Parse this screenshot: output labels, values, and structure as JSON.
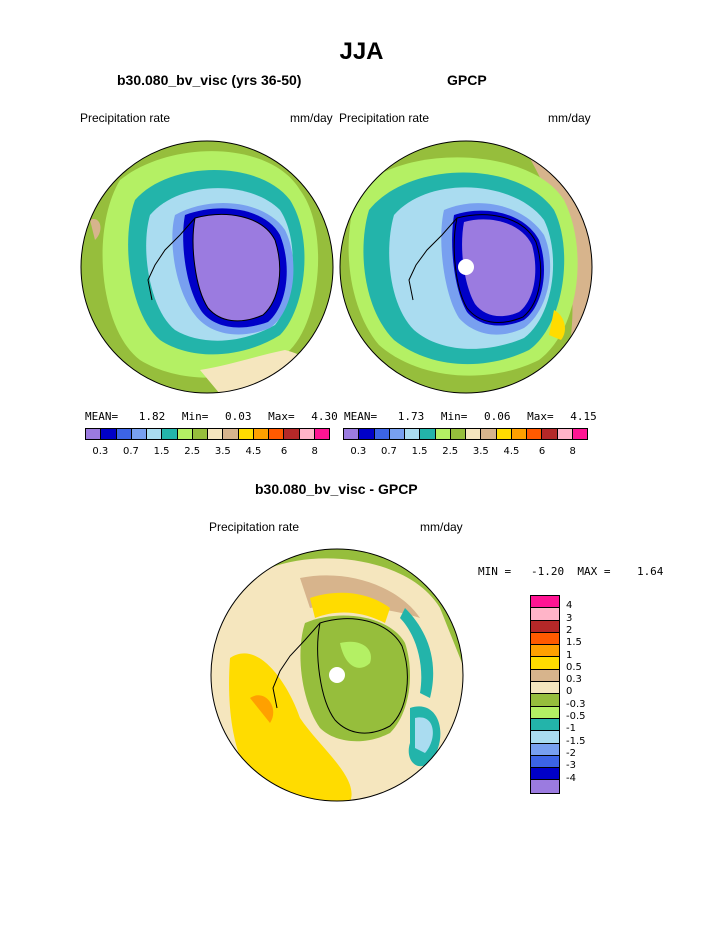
{
  "figure": {
    "title": "JJA",
    "left_panel": {
      "subtitle": "b30.080_bv_visc (yrs 36-50)",
      "variable": "Precipitation rate",
      "units": "mm/day",
      "stats": {
        "mean_label": "MEAN=",
        "mean": "1.82",
        "min_label": "Min=",
        "min": "0.03",
        "max_label": "Max=",
        "max": "4.30"
      }
    },
    "right_panel": {
      "subtitle": "GPCP",
      "variable": "Precipitation rate",
      "units": "mm/day",
      "stats": {
        "mean_label": "MEAN=",
        "mean": "1.73",
        "min_label": "Min=",
        "min": "0.06",
        "max_label": "Max=",
        "max": "4.15"
      }
    },
    "abs_colorbar": {
      "colors": [
        "#9b7be0",
        "#0000c8",
        "#3c64e6",
        "#78a0f0",
        "#aadcf0",
        "#23b4aa",
        "#b4f064",
        "#96be3c",
        "#f5e6be",
        "#d7b48c",
        "#ffdc00",
        "#ffa000",
        "#ff5a00",
        "#b42828",
        "#ffb4c8",
        "#ff1493"
      ],
      "tick_labels": [
        "0.3",
        "0.7",
        "1.5",
        "2.5",
        "3.5",
        "4.5",
        "6",
        "8"
      ]
    },
    "diff_panel": {
      "subtitle": "b30.080_bv_visc - GPCP",
      "variable": "Precipitation rate",
      "units": "mm/day",
      "minmax_text": "MIN =   -1.20  MAX =    1.64"
    },
    "diff_colorbar": {
      "colors": [
        "#ff1493",
        "#ffb4c8",
        "#b42828",
        "#ff5a00",
        "#ffa000",
        "#ffdc00",
        "#d7b48c",
        "#f5e6be",
        "#96be3c",
        "#b4f064",
        "#23b4aa",
        "#aadcf0",
        "#78a0f0",
        "#3c64e6",
        "#0000c8",
        "#9b7be0"
      ],
      "tick_labels": [
        "4",
        "3",
        "2",
        "1.5",
        "1",
        "0.5",
        "0.3",
        "0",
        "-0.3",
        "-0.5",
        "-1",
        "-1.5",
        "-2",
        "-3",
        "-4"
      ]
    },
    "map_colors": {
      "green": "#96be3c",
      "lightgreen": "#b4f064",
      "teal": "#23b4aa",
      "lightblue": "#aadcf0",
      "blue1": "#78a0f0",
      "blue2": "#3c64e6",
      "blue3": "#0000c8",
      "purple": "#9b7be0",
      "tan": "#d7b48c",
      "cream": "#f5e6be",
      "yellow": "#ffdc00",
      "orange": "#ffa000"
    }
  }
}
